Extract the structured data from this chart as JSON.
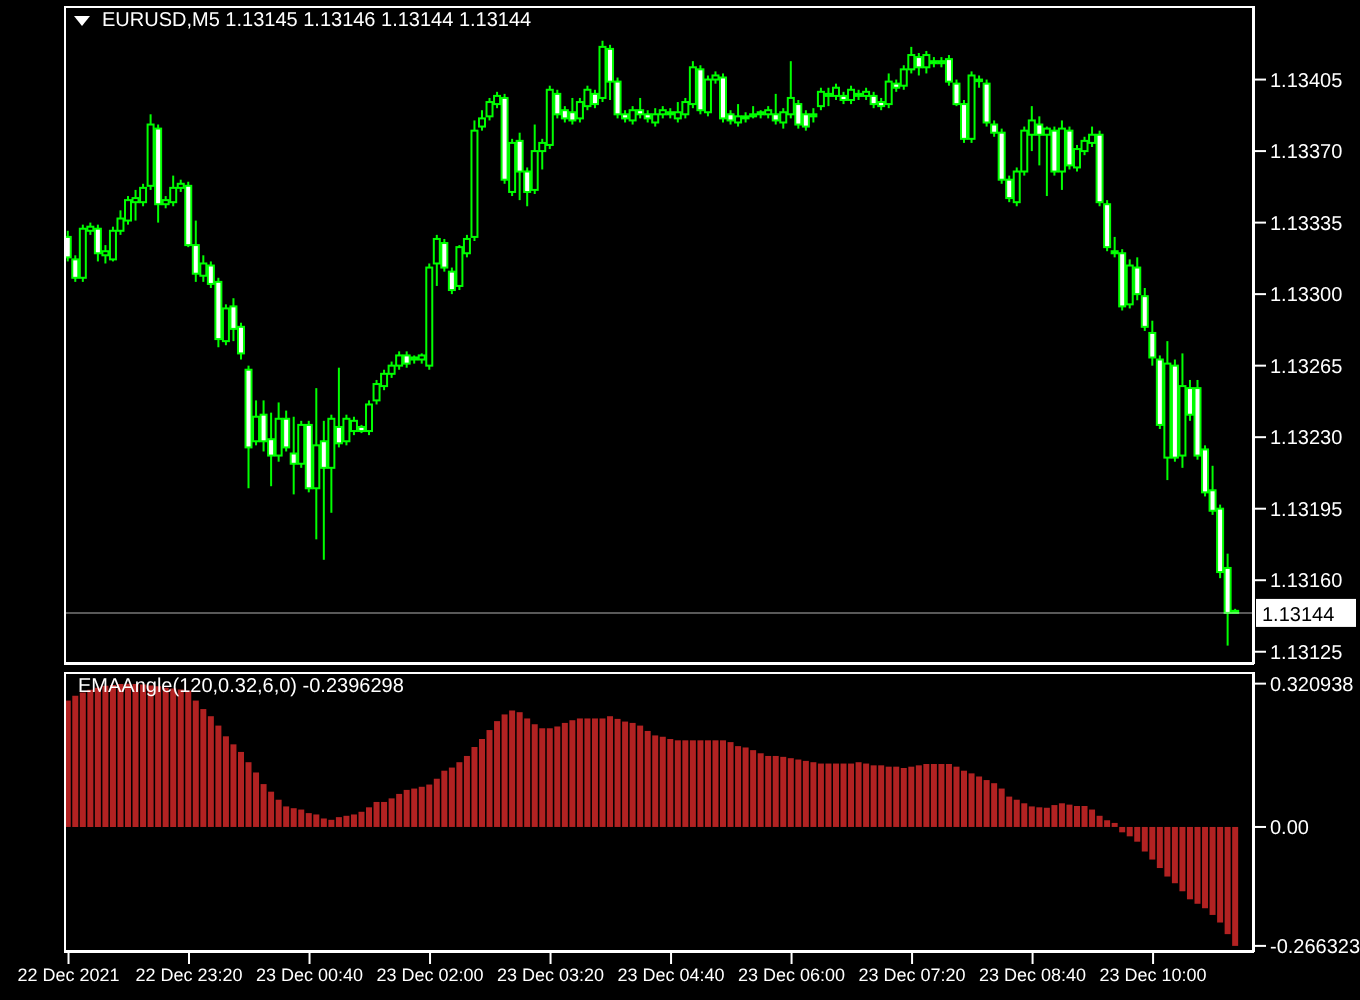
{
  "chart_data": [
    {
      "type": "candlestick",
      "title": "EURUSD,M5 1.13145 1.13146 1.13144 1.13144",
      "color": "#00ff00",
      "x": [
        "2021-12-22T22:00",
        "2021-12-22T22:05",
        "2021-12-22T22:10",
        "2021-12-22T22:15",
        "2021-12-22T22:20",
        "2021-12-22T22:25",
        "2021-12-22T22:30",
        "2021-12-22T22:35",
        "2021-12-22T22:40",
        "2021-12-22T22:45",
        "2021-12-22T22:50",
        "2021-12-22T22:55",
        "2021-12-22T23:00",
        "2021-12-22T23:05",
        "2021-12-22T23:10",
        "2021-12-22T23:15",
        "2021-12-22T23:20",
        "2021-12-22T23:25",
        "2021-12-22T23:30",
        "2021-12-22T23:35",
        "2021-12-22T23:40",
        "2021-12-22T23:45",
        "2021-12-22T23:50",
        "2021-12-22T23:55",
        "2021-12-23T00:00",
        "2021-12-23T00:05",
        "2021-12-23T00:10",
        "2021-12-23T00:15",
        "2021-12-23T00:20",
        "2021-12-23T00:25",
        "2021-12-23T00:30",
        "2021-12-23T00:35",
        "2021-12-23T00:40",
        "2021-12-23T00:45",
        "2021-12-23T00:50",
        "2021-12-23T00:55",
        "2021-12-23T01:00",
        "2021-12-23T01:05",
        "2021-12-23T01:10",
        "2021-12-23T01:15",
        "2021-12-23T01:20",
        "2021-12-23T01:25",
        "2021-12-23T01:30",
        "2021-12-23T01:35",
        "2021-12-23T01:40",
        "2021-12-23T01:45",
        "2021-12-23T01:50",
        "2021-12-23T01:55",
        "2021-12-23T02:00",
        "2021-12-23T02:05",
        "2021-12-23T02:10",
        "2021-12-23T02:15",
        "2021-12-23T02:20",
        "2021-12-23T02:25",
        "2021-12-23T02:30",
        "2021-12-23T02:35",
        "2021-12-23T02:40",
        "2021-12-23T02:45",
        "2021-12-23T02:50",
        "2021-12-23T02:55",
        "2021-12-23T03:00",
        "2021-12-23T03:05",
        "2021-12-23T03:10",
        "2021-12-23T03:15",
        "2021-12-23T03:20",
        "2021-12-23T03:25",
        "2021-12-23T03:30",
        "2021-12-23T03:35",
        "2021-12-23T03:40",
        "2021-12-23T03:45",
        "2021-12-23T03:50",
        "2021-12-23T03:55",
        "2021-12-23T04:00",
        "2021-12-23T04:05",
        "2021-12-23T04:10",
        "2021-12-23T04:15",
        "2021-12-23T04:20",
        "2021-12-23T04:25",
        "2021-12-23T04:30",
        "2021-12-23T04:35",
        "2021-12-23T04:40",
        "2021-12-23T04:45",
        "2021-12-23T04:50",
        "2021-12-23T04:55",
        "2021-12-23T05:00",
        "2021-12-23T05:05",
        "2021-12-23T05:10",
        "2021-12-23T05:15",
        "2021-12-23T05:20",
        "2021-12-23T05:25",
        "2021-12-23T05:30",
        "2021-12-23T05:35",
        "2021-12-23T05:40",
        "2021-12-23T05:45",
        "2021-12-23T05:50",
        "2021-12-23T05:55",
        "2021-12-23T06:00",
        "2021-12-23T06:05",
        "2021-12-23T06:10",
        "2021-12-23T06:15",
        "2021-12-23T06:20",
        "2021-12-23T06:25",
        "2021-12-23T06:30",
        "2021-12-23T06:35",
        "2021-12-23T06:40",
        "2021-12-23T06:45",
        "2021-12-23T06:50",
        "2021-12-23T06:55",
        "2021-12-23T07:00",
        "2021-12-23T07:05",
        "2021-12-23T07:10",
        "2021-12-23T07:15",
        "2021-12-23T07:20",
        "2021-12-23T07:25",
        "2021-12-23T07:30",
        "2021-12-23T07:35",
        "2021-12-23T07:40",
        "2021-12-23T07:45",
        "2021-12-23T07:50",
        "2021-12-23T07:55",
        "2021-12-23T08:00",
        "2021-12-23T08:05",
        "2021-12-23T08:10",
        "2021-12-23T08:15",
        "2021-12-23T08:20",
        "2021-12-23T08:25",
        "2021-12-23T08:30",
        "2021-12-23T08:35",
        "2021-12-23T08:40",
        "2021-12-23T08:45",
        "2021-12-23T08:50",
        "2021-12-23T08:55",
        "2021-12-23T09:00",
        "2021-12-23T09:05",
        "2021-12-23T09:10",
        "2021-12-23T09:15",
        "2021-12-23T09:20",
        "2021-12-23T09:25",
        "2021-12-23T09:30",
        "2021-12-23T09:35",
        "2021-12-23T09:40",
        "2021-12-23T09:45",
        "2021-12-23T09:50",
        "2021-12-23T09:55",
        "2021-12-23T10:00",
        "2021-12-23T10:05",
        "2021-12-23T10:10",
        "2021-12-23T10:15",
        "2021-12-23T10:20",
        "2021-12-23T10:25",
        "2021-12-23T10:30",
        "2021-12-23T10:35",
        "2021-12-23T10:40",
        "2021-12-23T10:45",
        "2021-12-23T10:50",
        "2021-12-23T10:55"
      ],
      "ohlc": [
        [
          1.13328,
          1.13331,
          1.13316,
          1.13318
        ],
        [
          1.13317,
          1.13319,
          1.13306,
          1.13308
        ],
        [
          1.13308,
          1.13334,
          1.13306,
          1.13332
        ],
        [
          1.13331,
          1.13335,
          1.13329,
          1.13333
        ],
        [
          1.13332,
          1.13334,
          1.13316,
          1.1332
        ],
        [
          1.13319,
          1.13324,
          1.13315,
          1.13321
        ],
        [
          1.13317,
          1.13333,
          1.13316,
          1.13331
        ],
        [
          1.13331,
          1.13341,
          1.13329,
          1.13337
        ],
        [
          1.13336,
          1.13348,
          1.13334,
          1.13346
        ],
        [
          1.13345,
          1.13351,
          1.13336,
          1.13347
        ],
        [
          1.13345,
          1.13354,
          1.13343,
          1.13352
        ],
        [
          1.13353,
          1.13388,
          1.13351,
          1.13383
        ],
        [
          1.13381,
          1.13383,
          1.13335,
          1.13344
        ],
        [
          1.13344,
          1.13348,
          1.13342,
          1.13346
        ],
        [
          1.13345,
          1.13358,
          1.13343,
          1.13352
        ],
        [
          1.13352,
          1.13356,
          1.1335,
          1.13354
        ],
        [
          1.13353,
          1.13355,
          1.13323,
          1.13324
        ],
        [
          1.13324,
          1.13336,
          1.13306,
          1.1331
        ],
        [
          1.13309,
          1.13319,
          1.13306,
          1.13315
        ],
        [
          1.13314,
          1.13316,
          1.13303,
          1.13305
        ],
        [
          1.13306,
          1.13308,
          1.13274,
          1.13278
        ],
        [
          1.13277,
          1.13295,
          1.13275,
          1.13293
        ],
        [
          1.13294,
          1.13298,
          1.13277,
          1.13283
        ],
        [
          1.13284,
          1.13286,
          1.13268,
          1.13271
        ],
        [
          1.13263,
          1.13265,
          1.13205,
          1.13225
        ],
        [
          1.13228,
          1.13248,
          1.13226,
          1.1324
        ],
        [
          1.13241,
          1.13248,
          1.13223,
          1.13228
        ],
        [
          1.13229,
          1.13242,
          1.13206,
          1.13221
        ],
        [
          1.13221,
          1.13247,
          1.13218,
          1.13239
        ],
        [
          1.13239,
          1.13243,
          1.13223,
          1.13225
        ],
        [
          1.13222,
          1.1324,
          1.13202,
          1.13217
        ],
        [
          1.13217,
          1.13238,
          1.13215,
          1.13236
        ],
        [
          1.13236,
          1.13238,
          1.13203,
          1.13205
        ],
        [
          1.13205,
          1.13254,
          1.1318,
          1.13226
        ],
        [
          1.13228,
          1.13238,
          1.1317,
          1.13215
        ],
        [
          1.13215,
          1.13241,
          1.13193,
          1.13239
        ],
        [
          1.13235,
          1.13264,
          1.13225,
          1.13227
        ],
        [
          1.13228,
          1.13241,
          1.13226,
          1.13239
        ],
        [
          1.13233,
          1.1324,
          1.13231,
          1.13238
        ],
        [
          1.13235,
          1.13236,
          1.13232,
          1.13233
        ],
        [
          1.13233,
          1.13248,
          1.13231,
          1.13246
        ],
        [
          1.13248,
          1.13258,
          1.13246,
          1.13256
        ],
        [
          1.13255,
          1.13263,
          1.13253,
          1.13261
        ],
        [
          1.13261,
          1.13267,
          1.13259,
          1.13265
        ],
        [
          1.13265,
          1.13272,
          1.13263,
          1.1327
        ],
        [
          1.1327,
          1.13272,
          1.13264,
          1.13266
        ],
        [
          1.13268,
          1.1327,
          1.13266,
          1.13269
        ],
        [
          1.13268,
          1.13271,
          1.13266,
          1.1327
        ],
        [
          1.13265,
          1.13315,
          1.13263,
          1.13313
        ],
        [
          1.13315,
          1.13329,
          1.13304,
          1.13327
        ],
        [
          1.13325,
          1.13327,
          1.13311,
          1.13313
        ],
        [
          1.13311,
          1.13313,
          1.133,
          1.13302
        ],
        [
          1.13304,
          1.13324,
          1.13302,
          1.13323
        ],
        [
          1.1332,
          1.13329,
          1.13318,
          1.13327
        ],
        [
          1.13328,
          1.13385,
          1.13326,
          1.1338
        ],
        [
          1.13382,
          1.1339,
          1.1338,
          1.13386
        ],
        [
          1.13387,
          1.13396,
          1.13385,
          1.13394
        ],
        [
          1.13393,
          1.13399,
          1.13391,
          1.13397
        ],
        [
          1.13396,
          1.13398,
          1.13354,
          1.13356
        ],
        [
          1.1335,
          1.13376,
          1.13348,
          1.13374
        ],
        [
          1.13375,
          1.13379,
          1.13346,
          1.1336
        ],
        [
          1.1336,
          1.13362,
          1.13343,
          1.1335
        ],
        [
          1.13351,
          1.13383,
          1.13349,
          1.1337
        ],
        [
          1.1337,
          1.13376,
          1.13361,
          1.13374
        ],
        [
          1.13373,
          1.13402,
          1.13371,
          1.134
        ],
        [
          1.13398,
          1.134,
          1.13386,
          1.13388
        ],
        [
          1.1339,
          1.13392,
          1.13384,
          1.13386
        ],
        [
          1.13389,
          1.13396,
          1.13383,
          1.13385
        ],
        [
          1.13386,
          1.13396,
          1.13384,
          1.13394
        ],
        [
          1.13392,
          1.13402,
          1.1339,
          1.134
        ],
        [
          1.13398,
          1.134,
          1.13391,
          1.13393
        ],
        [
          1.13396,
          1.13424,
          1.13394,
          1.13421
        ],
        [
          1.1342,
          1.13422,
          1.13395,
          1.13404
        ],
        [
          1.13404,
          1.13406,
          1.13386,
          1.13388
        ],
        [
          1.13388,
          1.1339,
          1.13384,
          1.13386
        ],
        [
          1.13385,
          1.13392,
          1.13383,
          1.1339
        ],
        [
          1.1339,
          1.13396,
          1.13386,
          1.13388
        ],
        [
          1.13388,
          1.1339,
          1.13384,
          1.13386
        ],
        [
          1.13384,
          1.13391,
          1.13382,
          1.13388
        ],
        [
          1.13388,
          1.13392,
          1.13386,
          1.1339
        ],
        [
          1.13389,
          1.13391,
          1.13386,
          1.13388
        ],
        [
          1.13386,
          1.13394,
          1.13384,
          1.13389
        ],
        [
          1.13388,
          1.13396,
          1.13386,
          1.13394
        ],
        [
          1.13393,
          1.13414,
          1.13391,
          1.13411
        ],
        [
          1.1341,
          1.13412,
          1.13388,
          1.1339
        ],
        [
          1.13389,
          1.13407,
          1.13387,
          1.13405
        ],
        [
          1.13405,
          1.13409,
          1.13403,
          1.13407
        ],
        [
          1.13406,
          1.13408,
          1.13384,
          1.13386
        ],
        [
          1.13388,
          1.1339,
          1.13383,
          1.13385
        ],
        [
          1.13384,
          1.13393,
          1.13382,
          1.13387
        ],
        [
          1.13387,
          1.13389,
          1.13384,
          1.13386
        ],
        [
          1.13387,
          1.13392,
          1.13386,
          1.13388
        ],
        [
          1.13388,
          1.1339,
          1.13386,
          1.13389
        ],
        [
          1.13388,
          1.13392,
          1.13386,
          1.1339
        ],
        [
          1.13388,
          1.13398,
          1.13383,
          1.13385
        ],
        [
          1.13384,
          1.13391,
          1.13381,
          1.13389
        ],
        [
          1.13388,
          1.13414,
          1.13386,
          1.13396
        ],
        [
          1.13393,
          1.13395,
          1.13381,
          1.13383
        ],
        [
          1.13388,
          1.1339,
          1.1338,
          1.13382
        ],
        [
          1.13387,
          1.13391,
          1.13384,
          1.13388
        ],
        [
          1.13392,
          1.13401,
          1.1339,
          1.13399
        ],
        [
          1.13397,
          1.13401,
          1.13392,
          1.13398
        ],
        [
          1.13397,
          1.13403,
          1.13395,
          1.13401
        ],
        [
          1.13397,
          1.13399,
          1.13393,
          1.13395
        ],
        [
          1.13395,
          1.13402,
          1.13393,
          1.134
        ],
        [
          1.13398,
          1.134,
          1.13395,
          1.13397
        ],
        [
          1.13397,
          1.13401,
          1.13395,
          1.13399
        ],
        [
          1.13397,
          1.13399,
          1.13391,
          1.13393
        ],
        [
          1.13394,
          1.13396,
          1.1339,
          1.13392
        ],
        [
          1.13393,
          1.13408,
          1.13391,
          1.13404
        ],
        [
          1.13403,
          1.13405,
          1.13399,
          1.13401
        ],
        [
          1.13402,
          1.13412,
          1.134,
          1.1341
        ],
        [
          1.1341,
          1.13421,
          1.13408,
          1.13417
        ],
        [
          1.13416,
          1.13418,
          1.13407,
          1.13411
        ],
        [
          1.13411,
          1.13419,
          1.13408,
          1.13417
        ],
        [
          1.13414,
          1.13416,
          1.13411,
          1.13413
        ],
        [
          1.13413,
          1.13416,
          1.13411,
          1.13414
        ],
        [
          1.13415,
          1.13417,
          1.13402,
          1.13404
        ],
        [
          1.13403,
          1.13405,
          1.13392,
          1.13393
        ],
        [
          1.13393,
          1.13395,
          1.13374,
          1.13376
        ],
        [
          1.13376,
          1.13409,
          1.13374,
          1.13407
        ],
        [
          1.13405,
          1.13407,
          1.13401,
          1.13405
        ],
        [
          1.13403,
          1.13405,
          1.13382,
          1.13384
        ],
        [
          1.13383,
          1.13385,
          1.13377,
          1.13379
        ],
        [
          1.13379,
          1.13381,
          1.13354,
          1.13356
        ],
        [
          1.13356,
          1.13358,
          1.13345,
          1.13347
        ],
        [
          1.13345,
          1.13362,
          1.13343,
          1.1336
        ],
        [
          1.1336,
          1.13382,
          1.13358,
          1.1338
        ],
        [
          1.13378,
          1.13392,
          1.1337,
          1.13385
        ],
        [
          1.13383,
          1.13387,
          1.13363,
          1.13378
        ],
        [
          1.13378,
          1.13382,
          1.13348,
          1.13381
        ],
        [
          1.1338,
          1.13382,
          1.13358,
          1.1336
        ],
        [
          1.1336,
          1.13385,
          1.13351,
          1.13381
        ],
        [
          1.1338,
          1.13382,
          1.13361,
          1.13363
        ],
        [
          1.13362,
          1.13373,
          1.1336,
          1.13371
        ],
        [
          1.1337,
          1.13377,
          1.13368,
          1.13375
        ],
        [
          1.13374,
          1.13382,
          1.13372,
          1.13378
        ],
        [
          1.13378,
          1.1338,
          1.13343,
          1.13345
        ],
        [
          1.13344,
          1.13346,
          1.13321,
          1.13323
        ],
        [
          1.13321,
          1.13328,
          1.13318,
          1.1332
        ],
        [
          1.1332,
          1.13322,
          1.13292,
          1.13294
        ],
        [
          1.13295,
          1.13317,
          1.13293,
          1.13314
        ],
        [
          1.13313,
          1.13318,
          1.13297,
          1.133
        ],
        [
          1.13299,
          1.13303,
          1.13282,
          1.13284
        ],
        [
          1.13281,
          1.13287,
          1.13265,
          1.13269
        ],
        [
          1.13268,
          1.1327,
          1.13234,
          1.13236
        ],
        [
          1.1322,
          1.13277,
          1.13209,
          1.13266
        ],
        [
          1.13265,
          1.13268,
          1.13218,
          1.1322
        ],
        [
          1.13221,
          1.13271,
          1.13215,
          1.13255
        ],
        [
          1.13254,
          1.13258,
          1.13238,
          1.13241
        ],
        [
          1.13254,
          1.13258,
          1.13219,
          1.13221
        ],
        [
          1.13224,
          1.13226,
          1.13201,
          1.13203
        ],
        [
          1.13204,
          1.13216,
          1.13192,
          1.13194
        ],
        [
          1.13195,
          1.13197,
          1.13161,
          1.13164
        ],
        [
          1.13166,
          1.13173,
          1.13128,
          1.13144
        ],
        [
          1.13145,
          1.13146,
          1.13144,
          1.13144
        ]
      ],
      "xlim": [
        "2021-12-22T21:57",
        "2021-12-23T11:07"
      ],
      "ylim": [
        1.13119,
        1.13441
      ],
      "yticks": [
        1.13405,
        {
          "value": 1.1337,
          "label": "1.13370"
        },
        1.13335,
        {
          "value": 1.133,
          "label": "1.13300"
        },
        1.13265,
        {
          "value": 1.1323,
          "label": "1.13230"
        },
        1.13195,
        {
          "value": 1.1316,
          "label": "1.13160"
        },
        1.13125
      ],
      "tick_labels": "y",
      "ref_lines": [
        {
          "axis": "y",
          "value": 1.13144,
          "label": "1.13144"
        }
      ]
    },
    {
      "type": "bar",
      "title": "EMAAngle(120,0.32,6,0) -0.2396298",
      "color": "#b22222",
      "x": [
        "2021-12-22T22:00",
        "2021-12-22T22:05",
        "2021-12-22T22:10",
        "2021-12-22T22:15",
        "2021-12-22T22:20",
        "2021-12-22T22:25",
        "2021-12-22T22:30",
        "2021-12-22T22:35",
        "2021-12-22T22:40",
        "2021-12-22T22:45",
        "2021-12-22T22:50",
        "2021-12-22T22:55",
        "2021-12-22T23:00",
        "2021-12-22T23:05",
        "2021-12-22T23:10",
        "2021-12-22T23:15",
        "2021-12-22T23:20",
        "2021-12-22T23:25",
        "2021-12-22T23:30",
        "2021-12-22T23:35",
        "2021-12-22T23:40",
        "2021-12-22T23:45",
        "2021-12-22T23:50",
        "2021-12-22T23:55",
        "2021-12-23T00:00",
        "2021-12-23T00:05",
        "2021-12-23T00:10",
        "2021-12-23T00:15",
        "2021-12-23T00:20",
        "2021-12-23T00:25",
        "2021-12-23T00:30",
        "2021-12-23T00:35",
        "2021-12-23T00:40",
        "2021-12-23T00:45",
        "2021-12-23T00:50",
        "2021-12-23T00:55",
        "2021-12-23T01:00",
        "2021-12-23T01:05",
        "2021-12-23T01:10",
        "2021-12-23T01:15",
        "2021-12-23T01:20",
        "2021-12-23T01:25",
        "2021-12-23T01:30",
        "2021-12-23T01:35",
        "2021-12-23T01:40",
        "2021-12-23T01:45",
        "2021-12-23T01:50",
        "2021-12-23T01:55",
        "2021-12-23T02:00",
        "2021-12-23T02:05",
        "2021-12-23T02:10",
        "2021-12-23T02:15",
        "2021-12-23T02:20",
        "2021-12-23T02:25",
        "2021-12-23T02:30",
        "2021-12-23T02:35",
        "2021-12-23T02:40",
        "2021-12-23T02:45",
        "2021-12-23T02:50",
        "2021-12-23T02:55",
        "2021-12-23T03:00",
        "2021-12-23T03:05",
        "2021-12-23T03:10",
        "2021-12-23T03:15",
        "2021-12-23T03:20",
        "2021-12-23T03:25",
        "2021-12-23T03:30",
        "2021-12-23T03:35",
        "2021-12-23T03:40",
        "2021-12-23T03:45",
        "2021-12-23T03:50",
        "2021-12-23T03:55",
        "2021-12-23T04:00",
        "2021-12-23T04:05",
        "2021-12-23T04:10",
        "2021-12-23T04:15",
        "2021-12-23T04:20",
        "2021-12-23T04:25",
        "2021-12-23T04:30",
        "2021-12-23T04:35",
        "2021-12-23T04:40",
        "2021-12-23T04:45",
        "2021-12-23T04:50",
        "2021-12-23T04:55",
        "2021-12-23T05:00",
        "2021-12-23T05:05",
        "2021-12-23T05:10",
        "2021-12-23T05:15",
        "2021-12-23T05:20",
        "2021-12-23T05:25",
        "2021-12-23T05:30",
        "2021-12-23T05:35",
        "2021-12-23T05:40",
        "2021-12-23T05:45",
        "2021-12-23T05:50",
        "2021-12-23T05:55",
        "2021-12-23T06:00",
        "2021-12-23T06:05",
        "2021-12-23T06:10",
        "2021-12-23T06:15",
        "2021-12-23T06:20",
        "2021-12-23T06:25",
        "2021-12-23T06:30",
        "2021-12-23T06:35",
        "2021-12-23T06:40",
        "2021-12-23T06:45",
        "2021-12-23T06:50",
        "2021-12-23T06:55",
        "2021-12-23T07:00",
        "2021-12-23T07:05",
        "2021-12-23T07:10",
        "2021-12-23T07:15",
        "2021-12-23T07:20",
        "2021-12-23T07:25",
        "2021-12-23T07:30",
        "2021-12-23T07:35",
        "2021-12-23T07:40",
        "2021-12-23T07:45",
        "2021-12-23T07:50",
        "2021-12-23T07:55",
        "2021-12-23T08:00",
        "2021-12-23T08:05",
        "2021-12-23T08:10",
        "2021-12-23T08:15",
        "2021-12-23T08:20",
        "2021-12-23T08:25",
        "2021-12-23T08:30",
        "2021-12-23T08:35",
        "2021-12-23T08:40",
        "2021-12-23T08:45",
        "2021-12-23T08:50",
        "2021-12-23T08:55",
        "2021-12-23T09:00",
        "2021-12-23T09:05",
        "2021-12-23T09:10",
        "2021-12-23T09:15",
        "2021-12-23T09:20",
        "2021-12-23T09:25",
        "2021-12-23T09:30",
        "2021-12-23T09:35",
        "2021-12-23T09:40",
        "2021-12-23T09:45",
        "2021-12-23T09:50",
        "2021-12-23T09:55",
        "2021-12-23T10:00",
        "2021-12-23T10:05",
        "2021-12-23T10:10",
        "2021-12-23T10:15",
        "2021-12-23T10:20",
        "2021-12-23T10:25",
        "2021-12-23T10:30",
        "2021-12-23T10:35",
        "2021-12-23T10:40",
        "2021-12-23T10:45",
        "2021-12-23T10:50",
        "2021-12-23T10:55"
      ],
      "values": [
        0.283,
        0.294,
        0.301,
        0.307,
        0.312,
        0.316,
        0.318,
        0.32,
        0.320938,
        0.32,
        0.319,
        0.317,
        0.315,
        0.312,
        0.31,
        0.308,
        0.305,
        0.283,
        0.264,
        0.248,
        0.227,
        0.203,
        0.185,
        0.168,
        0.145,
        0.122,
        0.096,
        0.079,
        0.061,
        0.046,
        0.042,
        0.039,
        0.031,
        0.028,
        0.019,
        0.016,
        0.022,
        0.025,
        0.028,
        0.034,
        0.044,
        0.056,
        0.056,
        0.064,
        0.074,
        0.083,
        0.086,
        0.09,
        0.095,
        0.108,
        0.126,
        0.133,
        0.145,
        0.159,
        0.179,
        0.197,
        0.217,
        0.237,
        0.252,
        0.261,
        0.257,
        0.243,
        0.23,
        0.221,
        0.221,
        0.225,
        0.233,
        0.239,
        0.243,
        0.243,
        0.243,
        0.243,
        0.248,
        0.242,
        0.236,
        0.233,
        0.227,
        0.215,
        0.205,
        0.202,
        0.197,
        0.194,
        0.194,
        0.194,
        0.194,
        0.194,
        0.194,
        0.194,
        0.19,
        0.181,
        0.178,
        0.172,
        0.165,
        0.159,
        0.159,
        0.157,
        0.154,
        0.151,
        0.148,
        0.145,
        0.142,
        0.142,
        0.142,
        0.142,
        0.142,
        0.145,
        0.142,
        0.138,
        0.138,
        0.135,
        0.135,
        0.132,
        0.135,
        0.138,
        0.141,
        0.141,
        0.141,
        0.141,
        0.135,
        0.126,
        0.12,
        0.113,
        0.105,
        0.098,
        0.086,
        0.068,
        0.061,
        0.053,
        0.046,
        0.044,
        0.043,
        0.049,
        0.053,
        0.05,
        0.047,
        0.047,
        0.039,
        0.025,
        0.015,
        0.009,
        -0.012,
        -0.021,
        -0.033,
        -0.055,
        -0.073,
        -0.092,
        -0.111,
        -0.126,
        -0.144,
        -0.162,
        -0.172,
        -0.182,
        -0.197,
        -0.214,
        -0.24,
        -0.266323
      ],
      "xlim": [
        "2021-12-22T21:57",
        "2021-12-23T11:07"
      ],
      "xticks": [
        {
          "value": "2021-12-22T22:00",
          "label": "22 Dec 2021"
        },
        {
          "value": "2021-12-22T23:20",
          "label": "22 Dec 23:20"
        },
        {
          "value": "2021-12-23T00:40",
          "label": "23 Dec 00:40"
        },
        {
          "value": "2021-12-23T02:00",
          "label": "23 Dec 02:00"
        },
        {
          "value": "2021-12-23T03:20",
          "label": "23 Dec 03:20"
        },
        {
          "value": "2021-12-23T04:40",
          "label": "23 Dec 04:40"
        },
        {
          "value": "2021-12-23T06:00",
          "label": "23 Dec 06:00"
        },
        {
          "value": "2021-12-23T07:20",
          "label": "23 Dec 07:20"
        },
        {
          "value": "2021-12-23T08:40",
          "label": "23 Dec 08:40"
        },
        {
          "value": "2021-12-23T10:00",
          "label": "23 Dec 10:00"
        }
      ],
      "ylim": [
        -0.28,
        0.347
      ],
      "yticks": [
        0.320938,
        {
          "value": 0,
          "label": "0.00"
        },
        -0.266323
      ]
    }
  ]
}
